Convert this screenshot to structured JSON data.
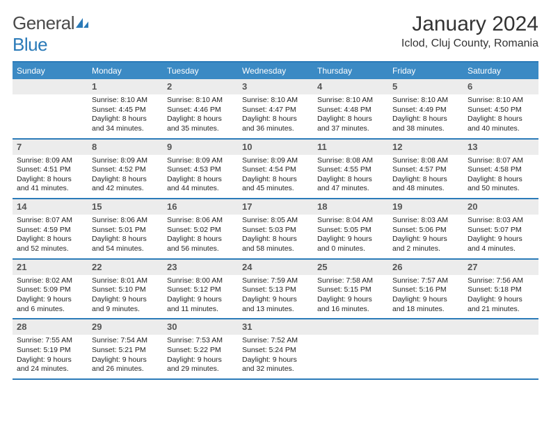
{
  "logo": {
    "text1": "General",
    "text2": "Blue"
  },
  "title": "January 2024",
  "location": "Iclod, Cluj County, Romania",
  "colors": {
    "header_bg": "#3b8ac4",
    "header_text": "#ffffff",
    "border": "#2a7ab8",
    "daynum_bg": "#ececec",
    "daynum_text": "#555555",
    "body_text": "#222222"
  },
  "weekdays": [
    "Sunday",
    "Monday",
    "Tuesday",
    "Wednesday",
    "Thursday",
    "Friday",
    "Saturday"
  ],
  "weeks": [
    [
      {
        "n": "",
        "sr": "",
        "ss": "",
        "dl": ""
      },
      {
        "n": "1",
        "sr": "Sunrise: 8:10 AM",
        "ss": "Sunset: 4:45 PM",
        "dl": "Daylight: 8 hours and 34 minutes."
      },
      {
        "n": "2",
        "sr": "Sunrise: 8:10 AM",
        "ss": "Sunset: 4:46 PM",
        "dl": "Daylight: 8 hours and 35 minutes."
      },
      {
        "n": "3",
        "sr": "Sunrise: 8:10 AM",
        "ss": "Sunset: 4:47 PM",
        "dl": "Daylight: 8 hours and 36 minutes."
      },
      {
        "n": "4",
        "sr": "Sunrise: 8:10 AM",
        "ss": "Sunset: 4:48 PM",
        "dl": "Daylight: 8 hours and 37 minutes."
      },
      {
        "n": "5",
        "sr": "Sunrise: 8:10 AM",
        "ss": "Sunset: 4:49 PM",
        "dl": "Daylight: 8 hours and 38 minutes."
      },
      {
        "n": "6",
        "sr": "Sunrise: 8:10 AM",
        "ss": "Sunset: 4:50 PM",
        "dl": "Daylight: 8 hours and 40 minutes."
      }
    ],
    [
      {
        "n": "7",
        "sr": "Sunrise: 8:09 AM",
        "ss": "Sunset: 4:51 PM",
        "dl": "Daylight: 8 hours and 41 minutes."
      },
      {
        "n": "8",
        "sr": "Sunrise: 8:09 AM",
        "ss": "Sunset: 4:52 PM",
        "dl": "Daylight: 8 hours and 42 minutes."
      },
      {
        "n": "9",
        "sr": "Sunrise: 8:09 AM",
        "ss": "Sunset: 4:53 PM",
        "dl": "Daylight: 8 hours and 44 minutes."
      },
      {
        "n": "10",
        "sr": "Sunrise: 8:09 AM",
        "ss": "Sunset: 4:54 PM",
        "dl": "Daylight: 8 hours and 45 minutes."
      },
      {
        "n": "11",
        "sr": "Sunrise: 8:08 AM",
        "ss": "Sunset: 4:55 PM",
        "dl": "Daylight: 8 hours and 47 minutes."
      },
      {
        "n": "12",
        "sr": "Sunrise: 8:08 AM",
        "ss": "Sunset: 4:57 PM",
        "dl": "Daylight: 8 hours and 48 minutes."
      },
      {
        "n": "13",
        "sr": "Sunrise: 8:07 AM",
        "ss": "Sunset: 4:58 PM",
        "dl": "Daylight: 8 hours and 50 minutes."
      }
    ],
    [
      {
        "n": "14",
        "sr": "Sunrise: 8:07 AM",
        "ss": "Sunset: 4:59 PM",
        "dl": "Daylight: 8 hours and 52 minutes."
      },
      {
        "n": "15",
        "sr": "Sunrise: 8:06 AM",
        "ss": "Sunset: 5:01 PM",
        "dl": "Daylight: 8 hours and 54 minutes."
      },
      {
        "n": "16",
        "sr": "Sunrise: 8:06 AM",
        "ss": "Sunset: 5:02 PM",
        "dl": "Daylight: 8 hours and 56 minutes."
      },
      {
        "n": "17",
        "sr": "Sunrise: 8:05 AM",
        "ss": "Sunset: 5:03 PM",
        "dl": "Daylight: 8 hours and 58 minutes."
      },
      {
        "n": "18",
        "sr": "Sunrise: 8:04 AM",
        "ss": "Sunset: 5:05 PM",
        "dl": "Daylight: 9 hours and 0 minutes."
      },
      {
        "n": "19",
        "sr": "Sunrise: 8:03 AM",
        "ss": "Sunset: 5:06 PM",
        "dl": "Daylight: 9 hours and 2 minutes."
      },
      {
        "n": "20",
        "sr": "Sunrise: 8:03 AM",
        "ss": "Sunset: 5:07 PM",
        "dl": "Daylight: 9 hours and 4 minutes."
      }
    ],
    [
      {
        "n": "21",
        "sr": "Sunrise: 8:02 AM",
        "ss": "Sunset: 5:09 PM",
        "dl": "Daylight: 9 hours and 6 minutes."
      },
      {
        "n": "22",
        "sr": "Sunrise: 8:01 AM",
        "ss": "Sunset: 5:10 PM",
        "dl": "Daylight: 9 hours and 9 minutes."
      },
      {
        "n": "23",
        "sr": "Sunrise: 8:00 AM",
        "ss": "Sunset: 5:12 PM",
        "dl": "Daylight: 9 hours and 11 minutes."
      },
      {
        "n": "24",
        "sr": "Sunrise: 7:59 AM",
        "ss": "Sunset: 5:13 PM",
        "dl": "Daylight: 9 hours and 13 minutes."
      },
      {
        "n": "25",
        "sr": "Sunrise: 7:58 AM",
        "ss": "Sunset: 5:15 PM",
        "dl": "Daylight: 9 hours and 16 minutes."
      },
      {
        "n": "26",
        "sr": "Sunrise: 7:57 AM",
        "ss": "Sunset: 5:16 PM",
        "dl": "Daylight: 9 hours and 18 minutes."
      },
      {
        "n": "27",
        "sr": "Sunrise: 7:56 AM",
        "ss": "Sunset: 5:18 PM",
        "dl": "Daylight: 9 hours and 21 minutes."
      }
    ],
    [
      {
        "n": "28",
        "sr": "Sunrise: 7:55 AM",
        "ss": "Sunset: 5:19 PM",
        "dl": "Daylight: 9 hours and 24 minutes."
      },
      {
        "n": "29",
        "sr": "Sunrise: 7:54 AM",
        "ss": "Sunset: 5:21 PM",
        "dl": "Daylight: 9 hours and 26 minutes."
      },
      {
        "n": "30",
        "sr": "Sunrise: 7:53 AM",
        "ss": "Sunset: 5:22 PM",
        "dl": "Daylight: 9 hours and 29 minutes."
      },
      {
        "n": "31",
        "sr": "Sunrise: 7:52 AM",
        "ss": "Sunset: 5:24 PM",
        "dl": "Daylight: 9 hours and 32 minutes."
      },
      {
        "n": "",
        "sr": "",
        "ss": "",
        "dl": ""
      },
      {
        "n": "",
        "sr": "",
        "ss": "",
        "dl": ""
      },
      {
        "n": "",
        "sr": "",
        "ss": "",
        "dl": ""
      }
    ]
  ]
}
